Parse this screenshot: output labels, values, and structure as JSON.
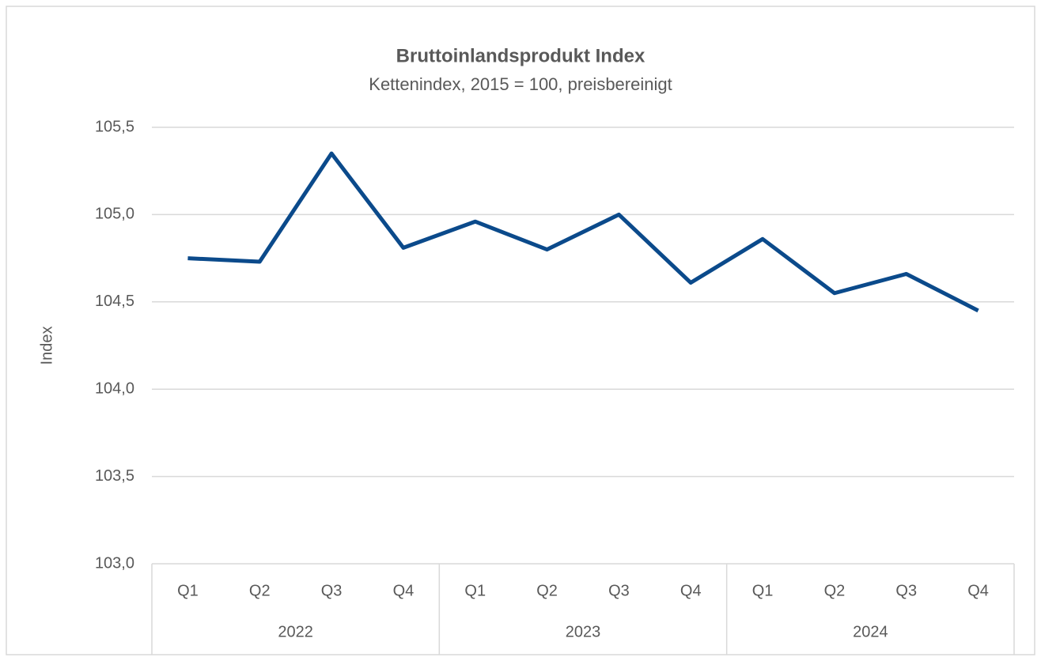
{
  "chart_data": {
    "type": "line",
    "title": "Bruttoinlandsprodukt Index",
    "subtitle": "Kettenindex, 2015 = 100, preisbereinigt",
    "ylabel": "Index",
    "categories": [
      "Q1",
      "Q2",
      "Q3",
      "Q4",
      "Q1",
      "Q2",
      "Q3",
      "Q4",
      "Q1",
      "Q2",
      "Q3",
      "Q4"
    ],
    "groups": [
      "2022",
      "2023",
      "2024"
    ],
    "series": [
      {
        "color": "#0b4a8b",
        "values": [
          104.75,
          104.73,
          105.35,
          104.81,
          104.96,
          104.8,
          105.0,
          104.61,
          104.86,
          104.55,
          104.66,
          104.45
        ]
      }
    ],
    "ylim": [
      103.0,
      105.5
    ],
    "yticks": [
      {
        "value": 103.0,
        "label": "103,0"
      },
      {
        "value": 103.5,
        "label": "103,5"
      },
      {
        "value": 104.0,
        "label": "104,0"
      },
      {
        "value": 104.5,
        "label": "104,5"
      },
      {
        "value": 105.0,
        "label": "105,0"
      },
      {
        "value": 105.5,
        "label": "105,5"
      }
    ],
    "grid": true
  }
}
